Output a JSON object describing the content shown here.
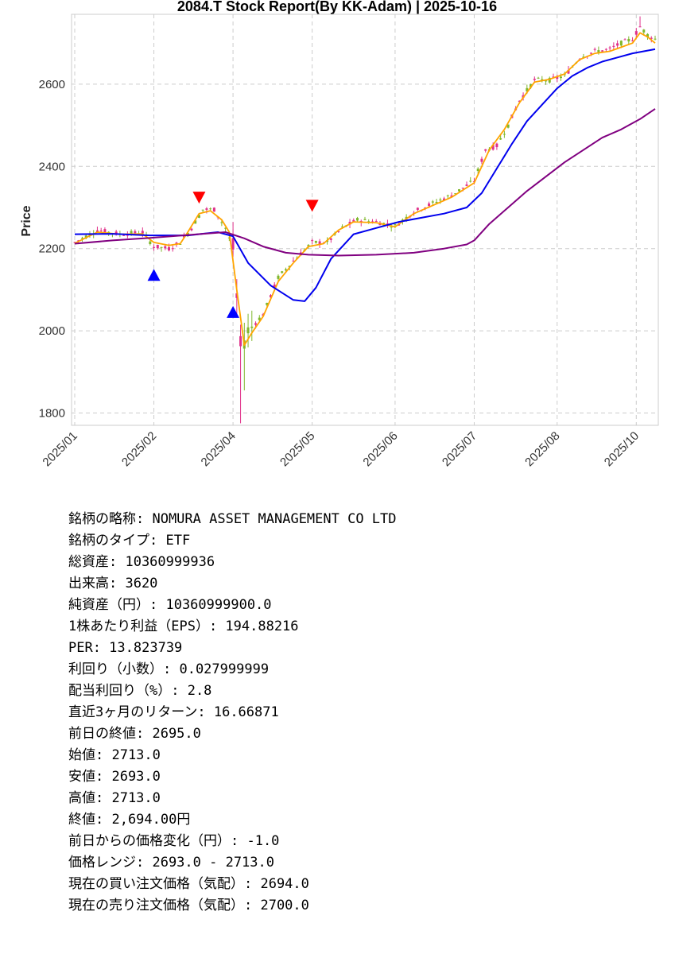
{
  "chart_data": {
    "type": "candlestick",
    "title": "2084.T   Stock Report(By KK-Adam) | 2025-10-16",
    "ylabel": "Price",
    "xlabel": "",
    "ylim": [
      1770,
      2770
    ],
    "yticks": [
      1800,
      2000,
      2200,
      2400,
      2600
    ],
    "xticks": [
      "2025/01",
      "2025/02",
      "2025/04",
      "2025/05",
      "2025/06",
      "2025/07",
      "2025/08",
      "2025/10"
    ],
    "xtick_positions": [
      0,
      21,
      42,
      63,
      85,
      106,
      128,
      149
    ],
    "grid": true,
    "n_days": 155,
    "price_path": [
      [
        0,
        2215
      ],
      [
        6,
        2245
      ],
      [
        12,
        2235
      ],
      [
        18,
        2240
      ],
      [
        21,
        2205
      ],
      [
        25,
        2200
      ],
      [
        28,
        2215
      ],
      [
        31,
        2250
      ],
      [
        34,
        2295
      ],
      [
        37,
        2295
      ],
      [
        40,
        2250
      ],
      [
        42,
        2200
      ],
      [
        44,
        1960
      ],
      [
        46,
        2000
      ],
      [
        50,
        2040
      ],
      [
        54,
        2130
      ],
      [
        58,
        2170
      ],
      [
        63,
        2215
      ],
      [
        67,
        2215
      ],
      [
        71,
        2250
      ],
      [
        75,
        2270
      ],
      [
        80,
        2265
      ],
      [
        85,
        2255
      ],
      [
        90,
        2290
      ],
      [
        95,
        2310
      ],
      [
        100,
        2330
      ],
      [
        106,
        2365
      ],
      [
        109,
        2440
      ],
      [
        112,
        2450
      ],
      [
        115,
        2500
      ],
      [
        118,
        2560
      ],
      [
        122,
        2610
      ],
      [
        126,
        2610
      ],
      [
        130,
        2620
      ],
      [
        134,
        2665
      ],
      [
        138,
        2680
      ],
      [
        142,
        2685
      ],
      [
        145,
        2700
      ],
      [
        148,
        2710
      ],
      [
        150,
        2740
      ],
      [
        152,
        2720
      ],
      [
        154,
        2710
      ]
    ],
    "series": [
      {
        "name": "",
        "color": "#FFA500",
        "values": [
          [
            0,
            2213
          ],
          [
            6,
            2240
          ],
          [
            12,
            2235
          ],
          [
            18,
            2236
          ],
          [
            21,
            2215
          ],
          [
            25,
            2208
          ],
          [
            28,
            2212
          ],
          [
            30,
            2240
          ],
          [
            33,
            2285
          ],
          [
            36,
            2292
          ],
          [
            39,
            2270
          ],
          [
            41,
            2240
          ],
          [
            43,
            2100
          ],
          [
            45,
            1965
          ],
          [
            47,
            1995
          ],
          [
            50,
            2035
          ],
          [
            54,
            2120
          ],
          [
            58,
            2165
          ],
          [
            62,
            2205
          ],
          [
            66,
            2212
          ],
          [
            70,
            2245
          ],
          [
            74,
            2265
          ],
          [
            80,
            2263
          ],
          [
            85,
            2253
          ],
          [
            90,
            2285
          ],
          [
            95,
            2305
          ],
          [
            100,
            2325
          ],
          [
            106,
            2360
          ],
          [
            110,
            2440
          ],
          [
            114,
            2490
          ],
          [
            118,
            2555
          ],
          [
            122,
            2605
          ],
          [
            126,
            2612
          ],
          [
            130,
            2625
          ],
          [
            134,
            2660
          ],
          [
            138,
            2675
          ],
          [
            142,
            2680
          ],
          [
            145,
            2690
          ],
          [
            148,
            2700
          ],
          [
            150,
            2725
          ],
          [
            152,
            2715
          ],
          [
            154,
            2700
          ]
        ]
      },
      {
        "name": "",
        "color": "#0000EE",
        "values": [
          [
            0,
            2235
          ],
          [
            10,
            2236
          ],
          [
            20,
            2232
          ],
          [
            30,
            2232
          ],
          [
            38,
            2240
          ],
          [
            42,
            2230
          ],
          [
            46,
            2165
          ],
          [
            52,
            2110
          ],
          [
            58,
            2075
          ],
          [
            61,
            2072
          ],
          [
            64,
            2105
          ],
          [
            68,
            2175
          ],
          [
            74,
            2235
          ],
          [
            80,
            2250
          ],
          [
            86,
            2265
          ],
          [
            92,
            2275
          ],
          [
            98,
            2285
          ],
          [
            104,
            2300
          ],
          [
            108,
            2335
          ],
          [
            112,
            2395
          ],
          [
            116,
            2455
          ],
          [
            120,
            2510
          ],
          [
            124,
            2550
          ],
          [
            128,
            2590
          ],
          [
            132,
            2620
          ],
          [
            136,
            2640
          ],
          [
            140,
            2655
          ],
          [
            144,
            2665
          ],
          [
            148,
            2675
          ],
          [
            154,
            2685
          ]
        ]
      },
      {
        "name": "",
        "color": "#800080",
        "values": [
          [
            0,
            2212
          ],
          [
            10,
            2220
          ],
          [
            20,
            2226
          ],
          [
            30,
            2233
          ],
          [
            40,
            2240
          ],
          [
            45,
            2225
          ],
          [
            50,
            2205
          ],
          [
            56,
            2190
          ],
          [
            62,
            2185
          ],
          [
            70,
            2183
          ],
          [
            80,
            2185
          ],
          [
            90,
            2190
          ],
          [
            98,
            2200
          ],
          [
            104,
            2210
          ],
          [
            106,
            2220
          ],
          [
            110,
            2260
          ],
          [
            115,
            2300
          ],
          [
            120,
            2340
          ],
          [
            125,
            2375
          ],
          [
            130,
            2410
          ],
          [
            135,
            2440
          ],
          [
            140,
            2470
          ],
          [
            145,
            2490
          ],
          [
            150,
            2515
          ],
          [
            154,
            2540
          ]
        ]
      }
    ],
    "buy_signals": [
      [
        21,
        2135
      ],
      [
        42,
        2045
      ]
    ],
    "sell_signals": [
      [
        33,
        2325
      ],
      [
        63,
        2305
      ]
    ]
  },
  "info": [
    "銘柄の略称: NOMURA ASSET MANAGEMENT CO LTD",
    "銘柄のタイプ: ETF",
    "総資産: 10360999936",
    "出来高: 3620",
    "純資産（円）: 10360999900.0",
    "1株あたり利益（EPS）: 194.88216",
    "PER: 13.823739",
    "利回り（小数）: 0.027999999",
    "配当利回り（%）: 2.8",
    "直近3ヶ月のリターン: 16.66871",
    "前日の終値: 2695.0",
    "始値: 2713.0",
    "安値: 2693.0",
    "高値: 2713.0",
    "終値: 2,694.00円",
    "前日からの価格変化（円）: -1.0",
    "価格レンジ: 2693.0 - 2713.0",
    "現在の買い注文価格（気配）: 2694.0",
    "現在の売り注文価格（気配）: 2700.0"
  ]
}
